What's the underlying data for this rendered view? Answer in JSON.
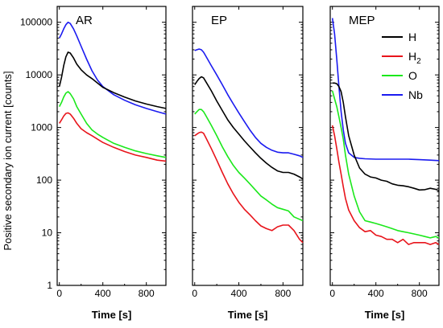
{
  "figure": {
    "ylabel": "Positive secondary ion current [counts]",
    "xlabel": "Time [s]"
  },
  "legend": [
    {
      "label": "H",
      "sub": "",
      "color": "#000000"
    },
    {
      "label": "H",
      "sub": "2",
      "color": "#e8141b"
    },
    {
      "label": "O",
      "sub": "",
      "color": "#1be81b"
    },
    {
      "label": "Nb",
      "sub": "",
      "color": "#1b1bf0"
    }
  ],
  "chart_data": [
    {
      "type": "line",
      "title": "AR",
      "xlabel": "Time [s]",
      "ylabel": "Positive secondary ion current [counts]",
      "xlim": [
        -20,
        980
      ],
      "ylim": [
        1,
        200000
      ],
      "yscale": "log",
      "xticks": [
        0,
        400,
        800
      ],
      "yticks": [
        1,
        10,
        100,
        1000,
        10000,
        100000
      ],
      "ytick_labels": [
        "1",
        "10",
        "100",
        "1000",
        "10000",
        "100000"
      ],
      "legend_position": "top-right",
      "series": [
        {
          "name": "Nb",
          "color": "#1b1bf0",
          "x": [
            0,
            20,
            40,
            60,
            80,
            100,
            130,
            160,
            200,
            250,
            300,
            350,
            400,
            500,
            600,
            700,
            800,
            900,
            980
          ],
          "y": [
            50000,
            60000,
            75000,
            90000,
            100000,
            95000,
            75000,
            55000,
            35000,
            20000,
            12000,
            8000,
            6000,
            4200,
            3300,
            2700,
            2300,
            2000,
            1800
          ]
        },
        {
          "name": "H",
          "color": "#000000",
          "x": [
            0,
            20,
            40,
            60,
            80,
            100,
            130,
            160,
            200,
            250,
            300,
            350,
            400,
            500,
            600,
            700,
            800,
            900,
            980
          ],
          "y": [
            6000,
            9000,
            15000,
            22000,
            27000,
            26000,
            21000,
            16000,
            12500,
            10000,
            8500,
            7000,
            5800,
            4600,
            3800,
            3200,
            2800,
            2500,
            2300
          ]
        },
        {
          "name": "O",
          "color": "#1be81b",
          "x": [
            0,
            20,
            40,
            60,
            80,
            100,
            130,
            160,
            200,
            250,
            300,
            350,
            400,
            500,
            600,
            700,
            800,
            900,
            980
          ],
          "y": [
            2500,
            3000,
            3800,
            4500,
            4800,
            4400,
            3500,
            2500,
            1800,
            1200,
            900,
            750,
            650,
            500,
            420,
            360,
            320,
            290,
            270
          ]
        },
        {
          "name": "H2",
          "color": "#e8141b",
          "x": [
            0,
            20,
            40,
            60,
            80,
            100,
            130,
            160,
            200,
            250,
            300,
            350,
            400,
            500,
            600,
            700,
            800,
            900,
            980
          ],
          "y": [
            1200,
            1400,
            1650,
            1850,
            1900,
            1800,
            1500,
            1200,
            950,
            800,
            700,
            600,
            520,
            420,
            350,
            300,
            270,
            240,
            230
          ]
        }
      ]
    },
    {
      "type": "line",
      "title": "EP",
      "xlabel": "Time [s]",
      "ylabel": "",
      "xlim": [
        -20,
        980
      ],
      "ylim": [
        1,
        200000
      ],
      "yscale": "log",
      "xticks": [
        0,
        400,
        800
      ],
      "series": [
        {
          "name": "Nb",
          "color": "#1b1bf0",
          "x": [
            0,
            20,
            40,
            60,
            80,
            100,
            150,
            200,
            250,
            300,
            350,
            400,
            450,
            500,
            550,
            600,
            650,
            700,
            750,
            800,
            850,
            900,
            950,
            980
          ],
          "y": [
            29000,
            30000,
            31000,
            30000,
            27000,
            23000,
            15000,
            10000,
            6500,
            4200,
            2800,
            1900,
            1300,
            900,
            650,
            500,
            420,
            370,
            340,
            330,
            330,
            310,
            290,
            270
          ]
        },
        {
          "name": "H",
          "color": "#000000",
          "x": [
            0,
            20,
            40,
            60,
            80,
            100,
            150,
            200,
            250,
            300,
            350,
            400,
            450,
            500,
            550,
            600,
            650,
            700,
            750,
            800,
            850,
            900,
            950,
            980
          ],
          "y": [
            6500,
            7500,
            8500,
            9200,
            8800,
            7500,
            5000,
            3200,
            2100,
            1400,
            1000,
            750,
            560,
            430,
            330,
            260,
            210,
            175,
            150,
            140,
            140,
            130,
            115,
            105
          ]
        },
        {
          "name": "O",
          "color": "#1be81b",
          "x": [
            0,
            20,
            40,
            60,
            80,
            100,
            150,
            200,
            250,
            300,
            350,
            400,
            450,
            500,
            550,
            600,
            650,
            700,
            750,
            800,
            850,
            900,
            950,
            980
          ],
          "y": [
            1800,
            2000,
            2200,
            2200,
            2000,
            1700,
            1100,
            700,
            430,
            280,
            190,
            140,
            110,
            85,
            65,
            50,
            42,
            35,
            30,
            28,
            26,
            20,
            18,
            17
          ]
        },
        {
          "name": "H2",
          "color": "#e8141b",
          "x": [
            0,
            20,
            40,
            60,
            80,
            100,
            150,
            200,
            250,
            300,
            350,
            400,
            450,
            500,
            550,
            600,
            650,
            700,
            750,
            800,
            850,
            900,
            950,
            980
          ],
          "y": [
            700,
            750,
            800,
            820,
            780,
            650,
            400,
            240,
            140,
            85,
            55,
            38,
            28,
            22,
            17,
            13.5,
            12,
            11,
            13,
            14,
            14,
            11,
            7.5,
            6.5
          ]
        }
      ]
    },
    {
      "type": "line",
      "title": "MEP",
      "xlabel": "Time [s]",
      "ylabel": "",
      "xlim": [
        -20,
        980
      ],
      "ylim": [
        1,
        200000
      ],
      "yscale": "log",
      "xticks": [
        0,
        400,
        800
      ],
      "series": [
        {
          "name": "Nb",
          "color": "#1b1bf0",
          "x": [
            0,
            20,
            40,
            60,
            80,
            100,
            120,
            150,
            200,
            250,
            300,
            400,
            500,
            600,
            700,
            800,
            900,
            980
          ],
          "y": [
            120000,
            60000,
            20000,
            6000,
            2000,
            900,
            500,
            330,
            270,
            260,
            255,
            250,
            250,
            250,
            250,
            245,
            240,
            235
          ]
        },
        {
          "name": "H",
          "color": "#000000",
          "x": [
            0,
            20,
            40,
            60,
            80,
            100,
            120,
            150,
            200,
            250,
            300,
            350,
            400,
            450,
            500,
            550,
            600,
            650,
            700,
            750,
            800,
            850,
            900,
            950,
            980
          ],
          "y": [
            7000,
            7000,
            6800,
            6000,
            4800,
            3000,
            1600,
            700,
            300,
            170,
            130,
            115,
            110,
            100,
            95,
            85,
            80,
            78,
            75,
            70,
            65,
            66,
            70,
            67,
            63
          ]
        },
        {
          "name": "O",
          "color": "#1be81b",
          "x": [
            0,
            20,
            40,
            60,
            80,
            100,
            120,
            150,
            200,
            250,
            300,
            350,
            400,
            450,
            500,
            550,
            600,
            650,
            700,
            750,
            800,
            850,
            900,
            950,
            980
          ],
          "y": [
            5000,
            3500,
            2500,
            1600,
            1000,
            600,
            300,
            130,
            50,
            25,
            17,
            16,
            15,
            14,
            13,
            12,
            11,
            10.5,
            10,
            9.5,
            9,
            8.5,
            8,
            8.5,
            8
          ]
        },
        {
          "name": "H2",
          "color": "#e8141b",
          "x": [
            0,
            20,
            40,
            60,
            80,
            100,
            120,
            150,
            200,
            250,
            300,
            350,
            400,
            450,
            500,
            550,
            600,
            650,
            700,
            750,
            800,
            850,
            900,
            950,
            980
          ],
          "y": [
            1100,
            700,
            400,
            220,
            130,
            75,
            45,
            27,
            17,
            12.5,
            10.5,
            11,
            9,
            8.5,
            7.5,
            7.5,
            6.5,
            7.5,
            6,
            6.5,
            6.5,
            6.5,
            6,
            6.5,
            6
          ]
        }
      ]
    }
  ]
}
